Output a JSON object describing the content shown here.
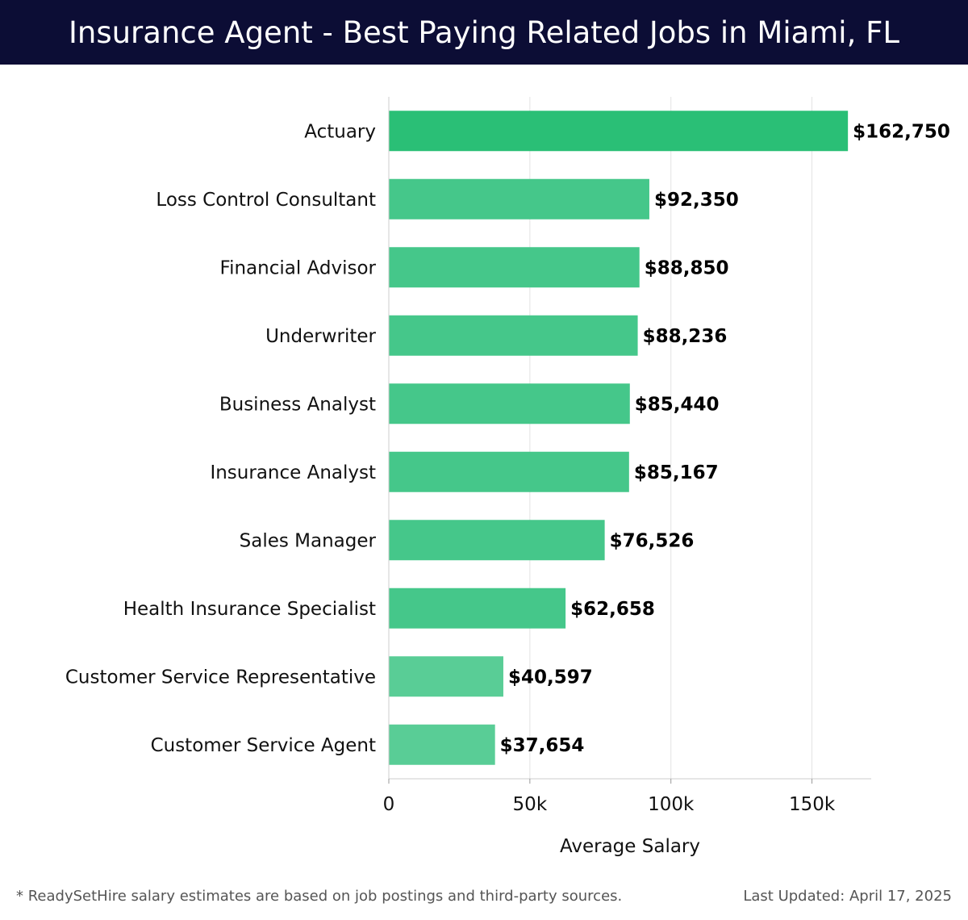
{
  "header": {
    "title": "Insurance Agent - Best Paying Related Jobs in Miami, FL"
  },
  "chart_data": {
    "type": "bar",
    "orientation": "horizontal",
    "title": "Insurance Agent - Best Paying Related Jobs in Miami, FL",
    "xlabel": "Average Salary",
    "ylabel": "",
    "categories": [
      "Actuary",
      "Loss Control Consultant",
      "Financial Advisor",
      "Underwriter",
      "Business Analyst",
      "Insurance Analyst",
      "Sales Manager",
      "Health Insurance Specialist",
      "Customer Service Representative",
      "Customer Service Agent"
    ],
    "values": [
      162750,
      92350,
      88850,
      88236,
      85440,
      85167,
      76526,
      62658,
      40597,
      37654
    ],
    "value_labels": [
      "$162,750",
      "$92,350",
      "$88,850",
      "$88,236",
      "$85,440",
      "$85,167",
      "$76,526",
      "$62,658",
      "$40,597",
      "$37,654"
    ],
    "xlim": [
      0,
      171000
    ],
    "xticks": [
      0,
      50000,
      100000,
      150000
    ],
    "xtick_labels": [
      "0",
      "50k",
      "100k",
      "150k"
    ],
    "grid": true,
    "colors": {
      "top_bar": "#2abf76",
      "bar": "#45c78a",
      "bar_light": "#59cd96",
      "grid": "#e3e3e3",
      "axis": "#cccccc"
    }
  },
  "footer": {
    "note": "* ReadySetHire salary estimates are based on job postings and third-party sources.",
    "updated": "Last Updated: April 17, 2025"
  }
}
